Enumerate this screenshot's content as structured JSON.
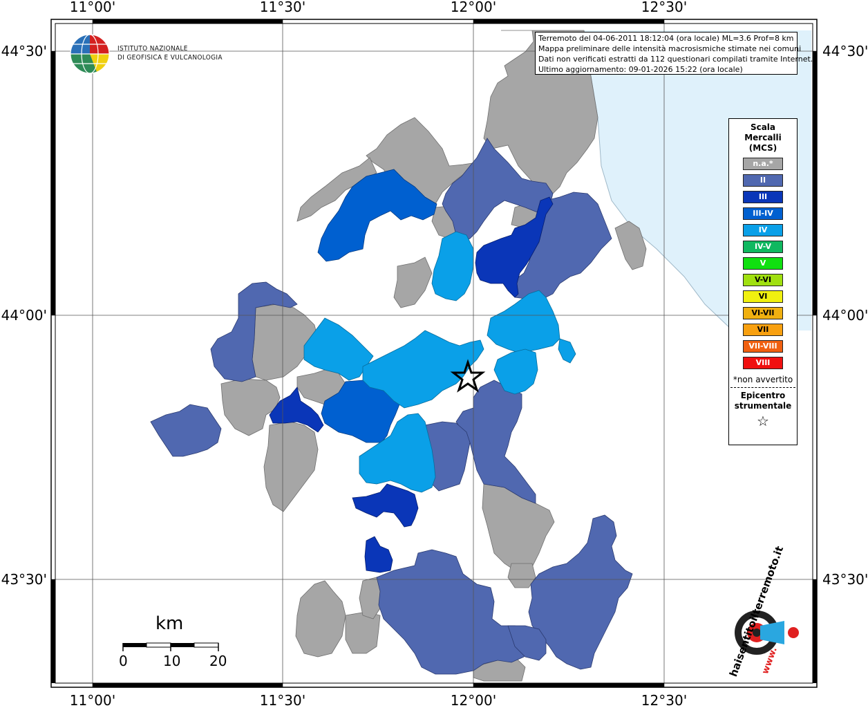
{
  "axis_labels": {
    "lon": [
      "11°00'",
      "11°30'",
      "12°00'",
      "12°30'"
    ],
    "lat": [
      "44°30'",
      "44°00'",
      "43°30'"
    ]
  },
  "logo": {
    "line1": "ISTITUTO NAZIONALE",
    "line2": "DI GEOFISICA E VULCANOLOGIA"
  },
  "info": {
    "line1": "Terremoto del 04-06-2011 18:12:04 (ora locale) ML=3.6 Prof=8 km",
    "line2": "Mappa preliminare delle intensità macrosismiche stimate nei comuni",
    "line3": "Dati non verificati estratti da 112 questionari compilati tramite Internet.",
    "line4": "Ultimo aggiornamento: 09-01-2026 15:22 (ora locale)"
  },
  "legend": {
    "title_1": "Scala",
    "title_2": "Mercalli",
    "title_3": "(MCS)",
    "classes": [
      {
        "label": "n.a.*",
        "color": "#a6a6a6"
      },
      {
        "label": "II",
        "color": "#5068b0"
      },
      {
        "label": "III",
        "color": "#0a36b8"
      },
      {
        "label": "III-IV",
        "color": "#0060d0"
      },
      {
        "label": "IV",
        "color": "#0aa0e8"
      },
      {
        "label": "IV-V",
        "color": "#10b860"
      },
      {
        "label": "V",
        "color": "#10e010"
      },
      {
        "label": "V-VI",
        "color": "#a0e010"
      },
      {
        "label": "VI",
        "color": "#f0f010"
      },
      {
        "label": "VI-VII",
        "color": "#f0b010"
      },
      {
        "label": "VII",
        "color": "#f8a010"
      },
      {
        "label": "VII-VIII",
        "color": "#f06010"
      },
      {
        "label": "VIII",
        "color": "#f01010"
      }
    ],
    "note": "*non avvertito",
    "epicenter_1": "Epicentro",
    "epicenter_2": "strumentale"
  },
  "scale_bar": {
    "title": "km",
    "labels": [
      "0",
      "10",
      "20"
    ]
  },
  "hsi_logo": {
    "text": "haisentitoilterremoto.it",
    "www": "www."
  },
  "colors": {
    "sea": "#dff1fb",
    "na": "#a6a6a6",
    "II": "#5068b0",
    "III": "#0a36b8",
    "III_IV": "#0060d0",
    "IV": "#0aa0e8"
  }
}
